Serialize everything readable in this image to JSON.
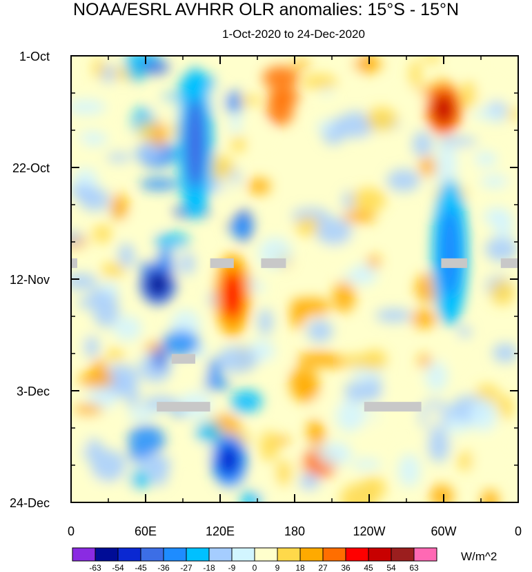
{
  "chart_data": {
    "type": "heatmap",
    "title": "NOAA/ESRL AVHRR OLR anomalies: 15°S - 15°N",
    "subtitle": "1-Oct-2020 to 24-Dec-2020",
    "xlabel": "",
    "ylabel": "",
    "x_tick_labels": [
      "0",
      "60E",
      "120E",
      "180",
      "120W",
      "60W",
      "0"
    ],
    "x_range_deg_east": [
      0,
      360
    ],
    "y_tick_labels": [
      "1-Oct",
      "22-Oct",
      "12-Nov",
      "3-Dec",
      "24-Dec"
    ],
    "y_range_days": [
      0,
      84
    ],
    "colorbar": {
      "units": "W/m^2",
      "levels": [
        "-63",
        "-54",
        "-45",
        "-36",
        "-27",
        "-18",
        "-9",
        "0",
        "9",
        "18",
        "27",
        "36",
        "45",
        "54",
        "63"
      ],
      "colors": [
        "#8a2be2",
        "#000c96",
        "#0a28d2",
        "#3c6ee6",
        "#1e8cff",
        "#00c0ff",
        "#a5cdff",
        "#d2f5ff",
        "#ffffcc",
        "#ffd94a",
        "#ffaa00",
        "#ff6e00",
        "#ff0000",
        "#c80000",
        "#9b1e1e",
        "#ff69b4"
      ]
    },
    "features": [
      {
        "name": "negative anomaly band Indian Ocean",
        "lon": 100,
        "start_day": 3,
        "end_day": 30,
        "value": -40
      },
      {
        "name": "strong negative anomaly",
        "lon": 70,
        "start_day": 40,
        "end_day": 46,
        "value": -63
      },
      {
        "name": "negative anomaly maritime continent",
        "lon": 127,
        "start_day": 72,
        "end_day": 80,
        "value": -50
      },
      {
        "name": "positive anomaly",
        "lon": 130,
        "start_day": 38,
        "end_day": 52,
        "value": 38
      },
      {
        "name": "positive anomaly east Pacific",
        "lon": 300,
        "start_day": 6,
        "end_day": 14,
        "value": 45
      },
      {
        "name": "negative anomaly South America",
        "lon": 305,
        "start_day": 24,
        "end_day": 50,
        "value": -35
      }
    ],
    "missing_data_gaps": [
      {
        "lon_start": 0,
        "lon_end": 5,
        "day": 39
      },
      {
        "lon_start": 112,
        "lon_end": 131,
        "day": 39
      },
      {
        "lon_start": 153,
        "lon_end": 173,
        "day": 39
      },
      {
        "lon_start": 298,
        "lon_end": 319,
        "day": 39
      },
      {
        "lon_start": 346,
        "lon_end": 360,
        "day": 39
      },
      {
        "lon_start": 81,
        "lon_end": 100,
        "day": 57
      },
      {
        "lon_start": 69,
        "lon_end": 112,
        "day": 66
      },
      {
        "lon_start": 236,
        "lon_end": 282,
        "day": 66
      }
    ]
  }
}
